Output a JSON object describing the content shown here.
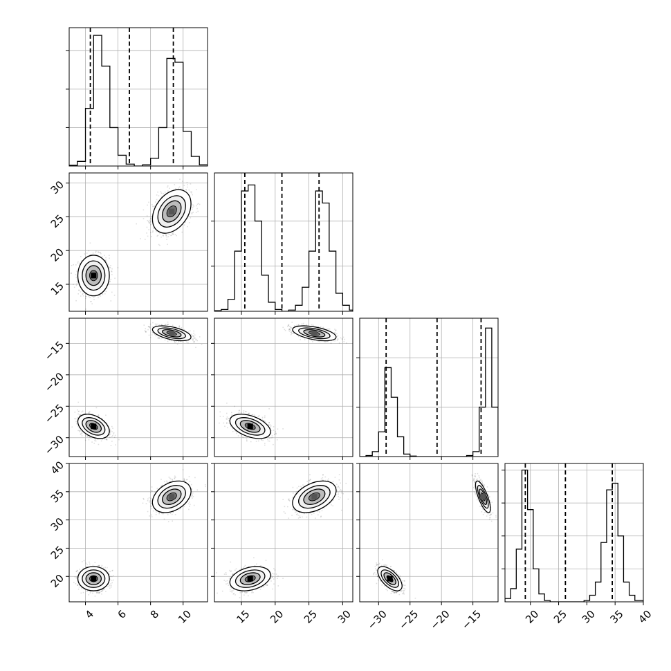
{
  "chart_data": {
    "type": "corner",
    "grid": true,
    "quantile_lines": "dashed",
    "dimensions": [
      {
        "range": [
          3,
          11.5
        ],
        "ticks": [
          4,
          6,
          8,
          10
        ],
        "tick_labels": [
          "4",
          "6",
          "8",
          "10"
        ],
        "quantiles": [
          4.3,
          6.7,
          9.4
        ],
        "modes": [
          4.5,
          9.3
        ],
        "spreads": [
          0.45,
          0.55
        ]
      },
      {
        "range": [
          11,
          31.5
        ],
        "ticks": [
          15,
          20,
          25,
          30
        ],
        "tick_labels": [
          "15",
          "20",
          "25",
          "30"
        ],
        "quantiles": [
          15.5,
          21.0,
          26.5
        ],
        "modes": [
          16.3,
          25.8
        ],
        "spreads": [
          1.4,
          1.5
        ]
      },
      {
        "range": [
          -33,
          -11
        ],
        "ticks": [
          -30,
          -25,
          -20,
          -15
        ],
        "tick_labels": [
          "−30",
          "−25",
          "−20",
          "−15"
        ],
        "quantiles": [
          -28.8,
          -20.7,
          -13.7
        ],
        "modes": [
          -28.2,
          -13.4
        ],
        "spreads": [
          0.9,
          0.55
        ]
      },
      {
        "range": [
          15.5,
          40
        ],
        "ticks": [
          20,
          25,
          30,
          35,
          40
        ],
        "tick_labels": [
          "20",
          "25",
          "30",
          "35",
          "40"
        ],
        "quantiles": [
          19.1,
          26.2,
          34.5
        ],
        "modes": [
          19.6,
          34.1
        ],
        "spreads": [
          1.0,
          1.3
        ]
      }
    ],
    "histograms": [
      {
        "bins": [
          3.0,
          3.5,
          4.0,
          4.5,
          5.0,
          5.5,
          6.0,
          6.5,
          7.0,
          7.5,
          8.0,
          8.5,
          9.0,
          9.5,
          10.0,
          10.5,
          11.0,
          11.5
        ],
        "counts": [
          2,
          12,
          150,
          340,
          260,
          100,
          28,
          5,
          0,
          3,
          20,
          100,
          280,
          270,
          90,
          25,
          3
        ]
      },
      {
        "bins": [
          11.0,
          12.0,
          13.0,
          14.0,
          15.0,
          16.0,
          17.0,
          18.0,
          19.0,
          20.0,
          21.0,
          22.0,
          23.0,
          24.0,
          25.0,
          26.0,
          27.0,
          28.0,
          29.0,
          30.0,
          31.0,
          31.5
        ],
        "counts": [
          1,
          3,
          20,
          100,
          200,
          210,
          150,
          60,
          15,
          3,
          0,
          2,
          10,
          40,
          100,
          200,
          180,
          100,
          30,
          10,
          2
        ]
      },
      {
        "bins": [
          -33,
          -32,
          -31,
          -30,
          -29,
          -28,
          -27,
          -26,
          -25,
          -24,
          -23,
          -22,
          -21,
          -20,
          -19,
          -18,
          -17,
          -16,
          -15,
          -14,
          -13,
          -12,
          -11
        ],
        "counts": [
          0,
          2,
          10,
          50,
          180,
          120,
          40,
          5,
          1,
          0,
          0,
          0,
          0,
          0,
          0,
          0,
          0,
          2,
          10,
          100,
          260,
          100,
          3
        ]
      },
      {
        "bins": [
          15.5,
          16.5,
          17.5,
          18.5,
          19.5,
          20.5,
          21.5,
          22.5,
          23.5,
          24.5,
          25.5,
          26.5,
          27.5,
          28.5,
          29.5,
          30.5,
          31.5,
          32.5,
          33.5,
          34.5,
          35.5,
          36.5,
          37.5,
          38.5,
          40.0
        ],
        "counts": [
          5,
          20,
          80,
          200,
          140,
          50,
          12,
          2,
          0,
          0,
          0,
          0,
          0,
          0,
          2,
          10,
          30,
          90,
          170,
          180,
          100,
          30,
          10,
          2
        ]
      }
    ],
    "hist_ylim": [
      [
        0,
        360
      ],
      [
        0,
        230
      ],
      [
        0,
        280
      ],
      [
        0,
        210
      ]
    ],
    "hist_yticks": [
      [
        100,
        200,
        300
      ],
      [
        75,
        150
      ],
      [
        100,
        200
      ],
      [
        50,
        100,
        150,
        200
      ]
    ],
    "correlations": [
      {
        "pair": [
          1,
          0
        ],
        "clusters": [
          0.0,
          0.35
        ]
      },
      {
        "pair": [
          2,
          0
        ],
        "clusters": [
          -0.4,
          -0.5
        ]
      },
      {
        "pair": [
          2,
          1
        ],
        "clusters": [
          -0.45,
          -0.5
        ]
      },
      {
        "pair": [
          3,
          0
        ],
        "clusters": [
          0.0,
          0.35
        ]
      },
      {
        "pair": [
          3,
          1
        ],
        "clusters": [
          0.3,
          0.4
        ]
      },
      {
        "pair": [
          3,
          2
        ],
        "clusters": [
          -0.6,
          -0.75
        ]
      }
    ]
  }
}
